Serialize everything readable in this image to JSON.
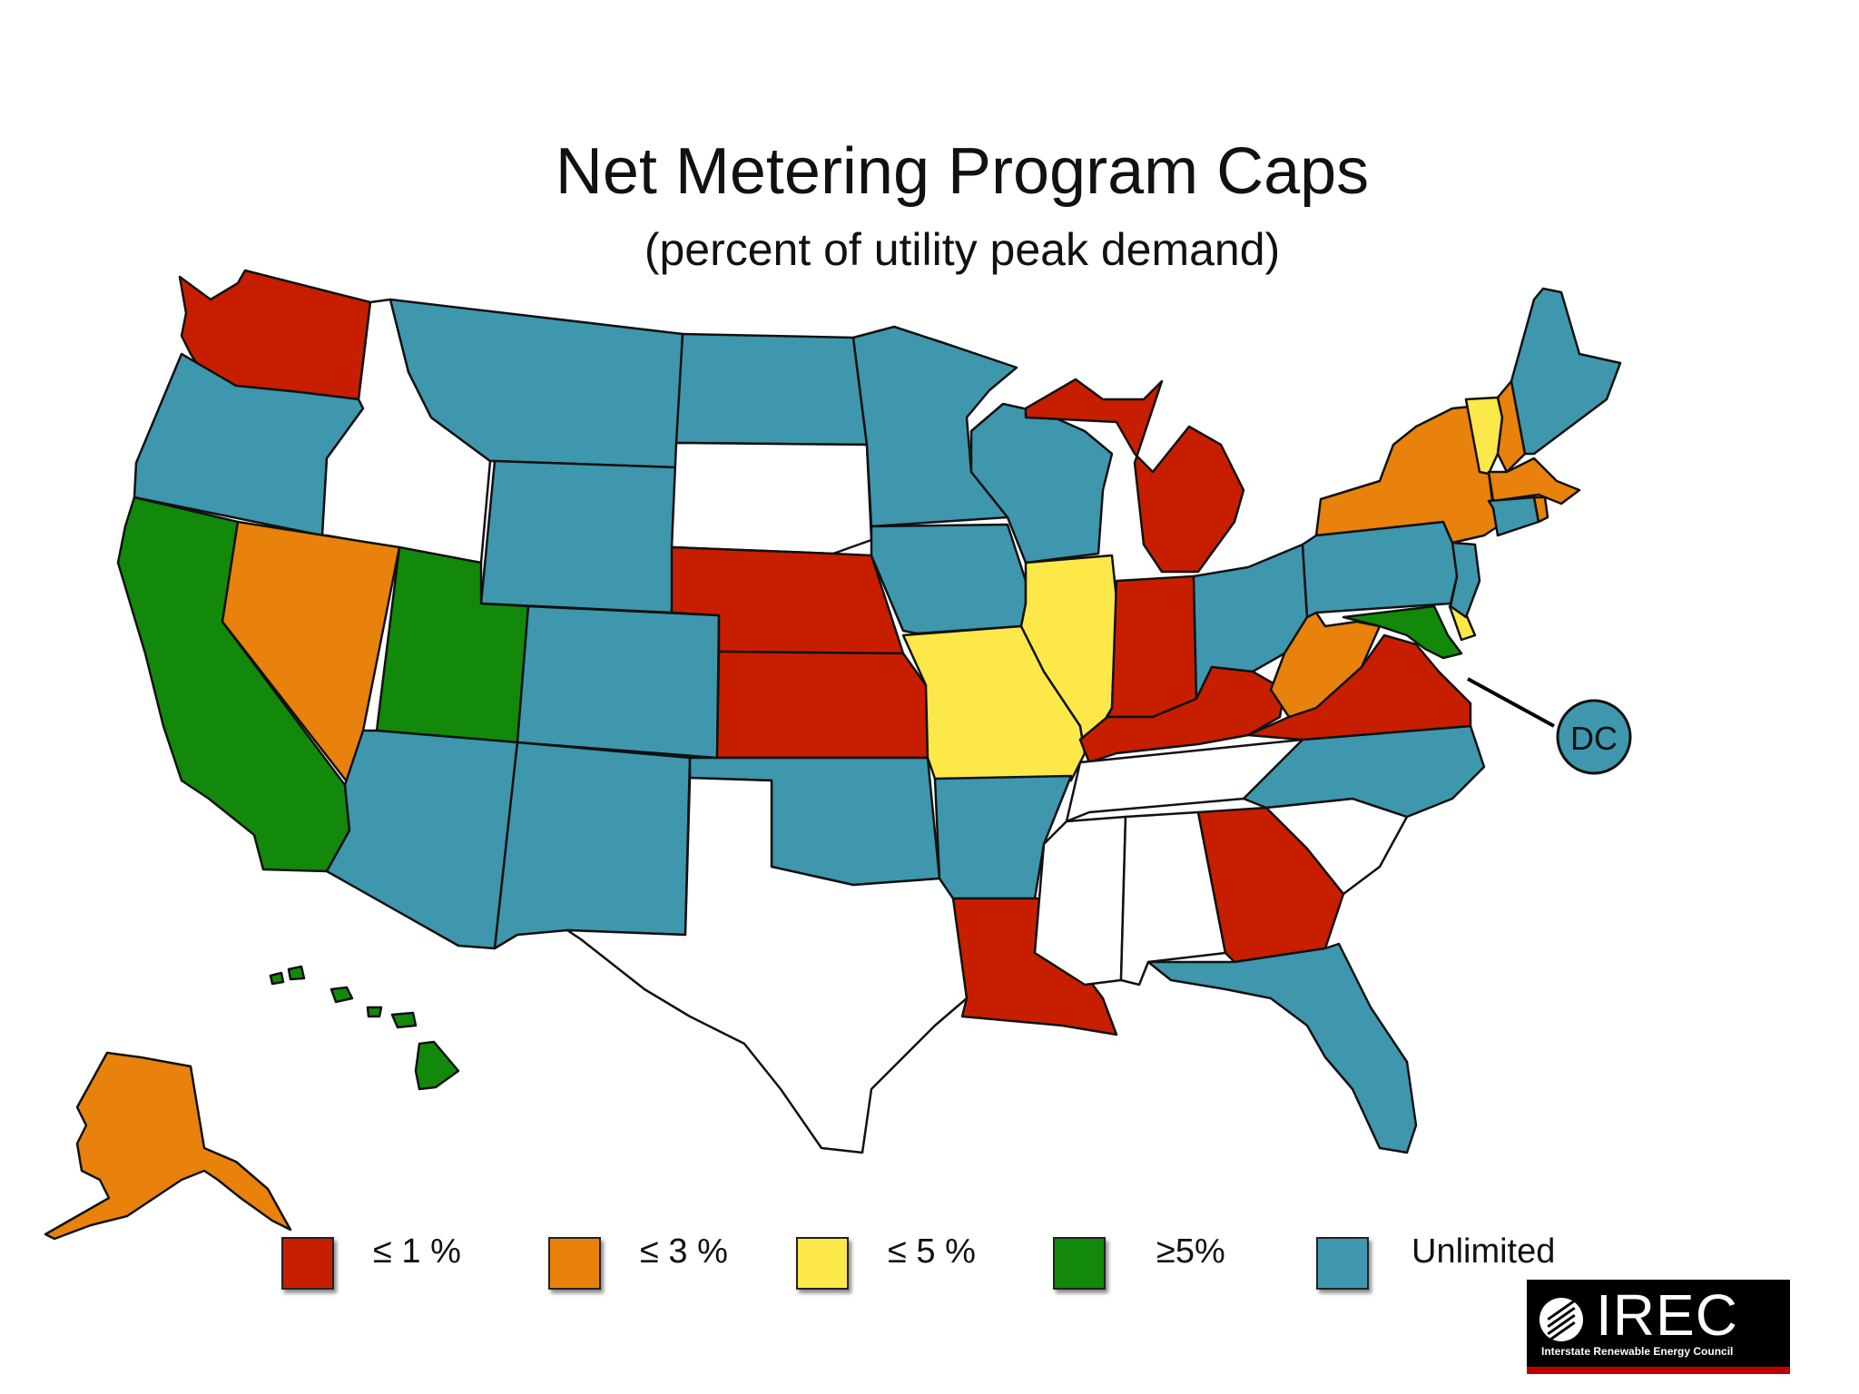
{
  "title": "Net Metering Program Caps",
  "subtitle": "(percent of utility peak demand)",
  "colors": {
    "le1": "#c81e00",
    "le3": "#e8820c",
    "le5": "#fde84a",
    "ge5": "#12890b",
    "unlimited": "#3f97ae",
    "none": "#ffffff"
  },
  "legend": [
    {
      "key": "le1",
      "label": "≤ 1 %"
    },
    {
      "key": "le3",
      "label": "≤ 3 %"
    },
    {
      "key": "le5",
      "label": "≤ 5 %"
    },
    {
      "key": "ge5",
      "label": "≥5%"
    },
    {
      "key": "unlimited",
      "label": "Unlimited"
    }
  ],
  "callout_label": "DC",
  "states": {
    "WA": "le1",
    "OR": "unlimited",
    "CA": "ge5",
    "NV": "le3",
    "ID": "none",
    "MT": "unlimited",
    "WY": "unlimited",
    "UT": "ge5",
    "CO": "unlimited",
    "AZ": "unlimited",
    "NM": "unlimited",
    "ND": "unlimited",
    "SD": "none",
    "NE": "le1",
    "KS": "le1",
    "OK": "unlimited",
    "TX": "none",
    "MN": "unlimited",
    "IA": "unlimited",
    "MO": "le5",
    "AR": "unlimited",
    "LA": "le1",
    "WI": "unlimited",
    "IL": "le5",
    "MI": "le1",
    "IN": "le1",
    "OH": "unlimited",
    "KY": "le1",
    "TN": "none",
    "MS": "none",
    "AL": "none",
    "GA": "le1",
    "FL": "unlimited",
    "SC": "none",
    "NC": "unlimited",
    "VA": "le1",
    "WV": "le3",
    "MD": "ge5",
    "DE": "le5",
    "NJ": "unlimited",
    "PA": "unlimited",
    "NY": "le3",
    "CT": "unlimited",
    "RI": "le3",
    "MA": "le3",
    "VT": "le5",
    "NH": "le3",
    "ME": "unlimited",
    "AK": "le3",
    "HI": "ge5"
  },
  "logo": {
    "name": "IREC",
    "tagline": "Interstate Renewable Energy Council"
  }
}
